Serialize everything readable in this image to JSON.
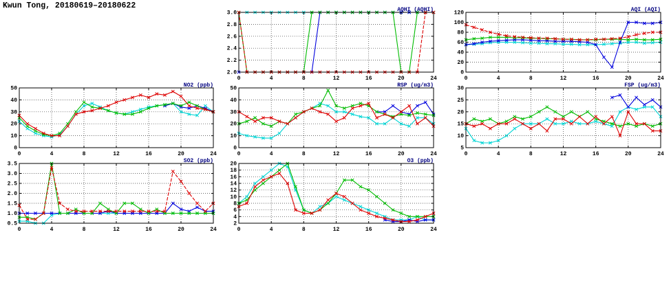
{
  "page_title": "Kwun Tong, 20180619–20180622",
  "colors": {
    "red": "#dd0000",
    "green": "#00bb00",
    "blue": "#0000dd",
    "cyan": "#00d5d5",
    "title_navy": "#000080",
    "grid": "#333333"
  },
  "chart_data": [
    {
      "id": "aqhi",
      "type": "line",
      "title": "AQHI (AQHI)",
      "xlim": [
        0,
        24
      ],
      "xticks": [
        0,
        4,
        8,
        12,
        16,
        20,
        24
      ],
      "ylim": [
        2.0,
        3.0
      ],
      "yticks": [
        2.0,
        2.2,
        2.4,
        2.6,
        2.8,
        3.0
      ],
      "ytick_labels": [
        "2.0",
        "2.2",
        "2.4",
        "2.6",
        "2.8",
        "3.0"
      ],
      "grid": true,
      "series": [
        {
          "name": "series-red",
          "color": "#dd0000",
          "dash": true,
          "values": [
            3,
            2,
            2,
            2,
            2,
            2,
            2,
            2,
            2,
            2,
            2,
            2,
            2,
            2,
            2,
            2,
            2,
            2,
            2,
            2,
            2,
            2,
            2,
            3,
            3
          ]
        },
        {
          "name": "series-green",
          "color": "#00bb00",
          "dash": false,
          "values": [
            3,
            2,
            2,
            2,
            2,
            2,
            2,
            2,
            2,
            3,
            3,
            3,
            3,
            3,
            3,
            3,
            3,
            3,
            3,
            3,
            2,
            2,
            3,
            3,
            3
          ]
        },
        {
          "name": "series-blue",
          "color": "#0000dd",
          "dash": false,
          "values": [
            2,
            2,
            2,
            2,
            2,
            2,
            2,
            2,
            2,
            2,
            3,
            3,
            3,
            3,
            3,
            3,
            3,
            3,
            3,
            3,
            3,
            3,
            3,
            3,
            3
          ]
        },
        {
          "name": "series-cyan",
          "color": "#00d5d5",
          "dash": false,
          "values": [
            3,
            3,
            3,
            3,
            3,
            3,
            3,
            3,
            3,
            3,
            3,
            3,
            3,
            3,
            3,
            3,
            3,
            3,
            3,
            3,
            3,
            3,
            3,
            3,
            3
          ]
        }
      ]
    },
    {
      "id": "aqi",
      "type": "line",
      "title": "AQI (AQI)",
      "xlim": [
        0,
        24
      ],
      "xticks": [
        0,
        4,
        8,
        12,
        16,
        20,
        24
      ],
      "ylim": [
        0,
        120
      ],
      "yticks": [
        0,
        20,
        40,
        60,
        80,
        100,
        120
      ],
      "ytick_labels": [
        "0",
        "20",
        "40",
        "60",
        "80",
        "100",
        "120"
      ],
      "grid": true,
      "series": [
        {
          "name": "series-red",
          "color": "#dd0000",
          "dash": true,
          "values": [
            95,
            90,
            85,
            80,
            76,
            73,
            71,
            70,
            69,
            68,
            68,
            67,
            66,
            66,
            65,
            65,
            66,
            66,
            67,
            68,
            71,
            75,
            78,
            80,
            80
          ]
        },
        {
          "name": "series-green",
          "color": "#00bb00",
          "dash": false,
          "values": [
            65,
            67,
            68,
            70,
            70,
            70,
            69,
            69,
            68,
            68,
            67,
            67,
            66,
            66,
            65,
            65,
            65,
            66,
            66,
            66,
            65,
            66,
            65,
            65,
            66
          ]
        },
        {
          "name": "series-blue",
          "color": "#0000dd",
          "dash": false,
          "values": [
            55,
            57,
            60,
            62,
            63,
            64,
            65,
            65,
            64,
            63,
            63,
            62,
            62,
            62,
            61,
            60,
            55,
            30,
            10,
            60,
            100,
            100,
            98,
            98,
            100
          ]
        },
        {
          "name": "series-cyan",
          "color": "#00d5d5",
          "dash": false,
          "values": [
            55,
            56,
            57,
            59,
            60,
            60,
            60,
            59,
            58,
            58,
            57,
            57,
            56,
            56,
            55,
            55,
            55,
            56,
            57,
            58,
            60,
            60,
            58,
            59,
            60
          ]
        }
      ]
    },
    {
      "id": "no2",
      "type": "line",
      "title": "NO2 (ppb)",
      "xlim": [
        0,
        24
      ],
      "xticks": [
        0,
        4,
        8,
        12,
        16,
        20,
        24
      ],
      "ylim": [
        0,
        50
      ],
      "yticks": [
        0,
        10,
        20,
        30,
        40,
        50
      ],
      "ytick_labels": [
        "0",
        "10",
        "20",
        "30",
        "40",
        "50"
      ],
      "grid": true,
      "series": [
        {
          "name": "series-red",
          "color": "#dd0000",
          "dash": false,
          "values": [
            27,
            20,
            16,
            12,
            10,
            10,
            18,
            28,
            30,
            31,
            33,
            35,
            38,
            40,
            42,
            44,
            42,
            45,
            44,
            47,
            43,
            35,
            33,
            32,
            30
          ]
        },
        {
          "name": "series-green",
          "color": "#00bb00",
          "dash": false,
          "values": [
            25,
            18,
            14,
            11,
            10,
            12,
            20,
            30,
            38,
            34,
            33,
            31,
            29,
            28,
            28,
            30,
            33,
            35,
            36,
            37,
            35,
            38,
            35,
            32,
            30
          ]
        },
        {
          "name": "series-blue",
          "color": "#0000dd",
          "dash": false,
          "values": [
            null,
            null,
            null,
            null,
            null,
            null,
            null,
            null,
            null,
            null,
            null,
            null,
            null,
            null,
            null,
            null,
            null,
            null,
            35,
            37,
            34,
            33,
            35,
            33,
            30
          ]
        },
        {
          "name": "series-cyan",
          "color": "#00d5d5",
          "dash": false,
          "values": [
            22,
            16,
            12,
            10,
            9,
            11,
            18,
            28,
            35,
            37,
            34,
            31,
            29,
            28,
            30,
            32,
            34,
            35,
            36,
            37,
            30,
            28,
            27,
            35,
            30
          ]
        }
      ]
    },
    {
      "id": "rsp",
      "type": "line",
      "title": "RSP (ug/m3)",
      "xlim": [
        0,
        24
      ],
      "xticks": [
        0,
        4,
        8,
        12,
        16,
        20,
        24
      ],
      "ylim": [
        0,
        50
      ],
      "yticks": [
        0,
        10,
        20,
        30,
        40,
        50
      ],
      "ytick_labels": [
        "0",
        "10",
        "20",
        "30",
        "40",
        "50"
      ],
      "grid": true,
      "series": [
        {
          "name": "series-red",
          "color": "#dd0000",
          "dash": false,
          "values": [
            30,
            26,
            22,
            25,
            25,
            22,
            20,
            25,
            30,
            33,
            30,
            28,
            22,
            25,
            33,
            35,
            37,
            25,
            28,
            25,
            30,
            35,
            20,
            25,
            18
          ]
        },
        {
          "name": "series-green",
          "color": "#00bb00",
          "dash": false,
          "values": [
            20,
            22,
            25,
            20,
            18,
            22,
            20,
            28,
            30,
            33,
            35,
            48,
            35,
            33,
            35,
            37,
            35,
            30,
            28,
            26,
            28,
            27,
            29,
            28,
            27
          ]
        },
        {
          "name": "series-blue",
          "color": "#0000dd",
          "dash": false,
          "values": [
            null,
            null,
            null,
            null,
            null,
            null,
            null,
            null,
            null,
            null,
            null,
            null,
            null,
            null,
            null,
            null,
            null,
            30,
            30,
            35,
            30,
            28,
            35,
            38,
            28
          ]
        },
        {
          "name": "series-cyan",
          "color": "#00d5d5",
          "dash": false,
          "values": [
            12,
            10,
            9,
            8,
            8,
            12,
            20,
            25,
            30,
            33,
            37,
            35,
            30,
            30,
            28,
            26,
            25,
            20,
            20,
            25,
            20,
            18,
            25,
            25,
            20
          ]
        }
      ]
    },
    {
      "id": "fsp",
      "type": "line",
      "title": "FSP (ug/m3)",
      "xlim": [
        0,
        24
      ],
      "xticks": [
        0,
        4,
        8,
        12,
        16,
        20,
        24
      ],
      "ylim": [
        5,
        30
      ],
      "yticks": [
        5,
        10,
        15,
        20,
        25,
        30
      ],
      "ytick_labels": [
        "5",
        "10",
        "15",
        "20",
        "25",
        "30"
      ],
      "grid": true,
      "series": [
        {
          "name": "series-red",
          "color": "#dd0000",
          "dash": false,
          "values": [
            15,
            14,
            15,
            13,
            15,
            15,
            17,
            15,
            13,
            15,
            12,
            17,
            17,
            15,
            18,
            15,
            18,
            15,
            18,
            10,
            20,
            15,
            15,
            12,
            12
          ]
        },
        {
          "name": "series-green",
          "color": "#00bb00",
          "dash": false,
          "values": [
            15,
            17,
            16,
            17,
            15,
            16,
            18,
            17,
            18,
            20,
            22,
            20,
            18,
            20,
            18,
            20,
            17,
            16,
            15,
            14,
            15,
            14,
            15,
            14,
            15
          ]
        },
        {
          "name": "series-blue",
          "color": "#0000dd",
          "dash": false,
          "values": [
            null,
            null,
            null,
            null,
            null,
            null,
            null,
            null,
            null,
            null,
            null,
            null,
            null,
            null,
            null,
            null,
            null,
            null,
            26,
            27,
            22,
            26,
            23,
            25,
            22
          ]
        },
        {
          "name": "series-cyan",
          "color": "#00d5d5",
          "dash": false,
          "values": [
            13,
            8,
            7,
            7,
            8,
            10,
            13,
            15,
            15,
            15,
            17,
            15,
            15,
            16,
            15,
            15,
            16,
            15,
            14,
            20,
            22,
            21,
            22,
            22,
            18
          ]
        }
      ]
    },
    {
      "id": "so2",
      "type": "line",
      "title": "SO2 (ppb)",
      "xlim": [
        0,
        24
      ],
      "xticks": [
        0,
        4,
        8,
        12,
        16,
        20,
        24
      ],
      "ylim": [
        0.5,
        3.5
      ],
      "yticks": [
        0.5,
        1.0,
        1.5,
        2.0,
        2.5,
        3.0,
        3.5
      ],
      "ytick_labels": [
        "0.5",
        "1.0",
        "1.5",
        "2.0",
        "2.5",
        "3.0",
        "3.5"
      ],
      "grid": true,
      "series": [
        {
          "name": "series-red",
          "color": "#dd0000",
          "dash": true,
          "values": [
            1.4,
            0.7,
            0.7,
            1.0,
            3.3,
            1.5,
            1.2,
            1.1,
            1.1,
            1.1,
            1.1,
            1.1,
            1.1,
            1.1,
            1.1,
            1.1,
            1.1,
            1.1,
            1.1,
            3.1,
            2.6,
            2.0,
            1.5,
            1.1,
            1.5
          ]
        },
        {
          "name": "series-green",
          "color": "#00bb00",
          "dash": false,
          "values": [
            0.8,
            0.8,
            0.7,
            1.0,
            3.5,
            1.0,
            1.0,
            1.2,
            1.0,
            1.0,
            1.5,
            1.2,
            1.0,
            1.5,
            1.5,
            1.2,
            1.0,
            1.2,
            1.0,
            1.0,
            1.0,
            1.0,
            1.0,
            1.0,
            1.0
          ]
        },
        {
          "name": "series-blue",
          "color": "#0000dd",
          "dash": false,
          "values": [
            1.0,
            1.0,
            1.0,
            1.0,
            1.0,
            1.0,
            1.0,
            1.0,
            1.0,
            1.0,
            1.0,
            1.1,
            1.0,
            1.0,
            1.0,
            1.0,
            1.0,
            1.0,
            1.0,
            1.5,
            1.2,
            1.1,
            1.3,
            1.1,
            1.1
          ]
        },
        {
          "name": "series-cyan",
          "color": "#00d5d5",
          "dash": false,
          "values": [
            0.6,
            0.6,
            0.5,
            0.5,
            0.9,
            1.0,
            1.0,
            1.0,
            1.0,
            1.0,
            1.0,
            1.0,
            1.0,
            1.0,
            1.0,
            1.0,
            1.0,
            1.0,
            1.0,
            1.0,
            1.0,
            1.0,
            1.0,
            1.0,
            1.0
          ]
        }
      ]
    },
    {
      "id": "o3",
      "type": "line",
      "title": "O3 (ppb)",
      "xlim": [
        0,
        24
      ],
      "xticks": [
        0,
        4,
        8,
        12,
        16,
        20,
        24
      ],
      "ylim": [
        2,
        20
      ],
      "yticks": [
        2,
        4,
        6,
        8,
        10,
        12,
        14,
        16,
        18,
        20
      ],
      "ytick_labels": [
        "2",
        "4",
        "6",
        "8",
        "10",
        "12",
        "14",
        "16",
        "18",
        "20"
      ],
      "grid": true,
      "series": [
        {
          "name": "series-red",
          "color": "#dd0000",
          "dash": false,
          "values": [
            7,
            8,
            13,
            15,
            16,
            17,
            14,
            6,
            5,
            5,
            6,
            9,
            11,
            10,
            8,
            6,
            5,
            4,
            3.5,
            3,
            2.5,
            2.5,
            3,
            4,
            5
          ]
        },
        {
          "name": "series-green",
          "color": "#00bb00",
          "dash": false,
          "values": [
            8,
            9,
            12,
            14,
            16,
            18,
            20,
            13,
            6,
            5,
            6,
            8,
            11,
            15,
            15,
            13,
            12,
            10,
            8,
            6,
            5,
            4,
            4,
            4,
            4
          ]
        },
        {
          "name": "series-blue",
          "color": "#0000dd",
          "dash": false,
          "values": [
            null,
            null,
            null,
            null,
            null,
            null,
            null,
            null,
            null,
            null,
            null,
            null,
            null,
            null,
            null,
            null,
            null,
            null,
            3,
            2.5,
            2.5,
            3,
            2.5,
            3,
            3
          ]
        },
        {
          "name": "series-cyan",
          "color": "#00d5d5",
          "dash": false,
          "values": [
            8,
            10,
            14,
            16,
            18,
            20,
            19,
            12,
            6,
            5,
            7,
            8,
            10,
            9,
            8,
            7,
            6,
            5,
            4,
            3,
            3,
            3,
            4,
            3,
            3
          ]
        }
      ]
    }
  ]
}
